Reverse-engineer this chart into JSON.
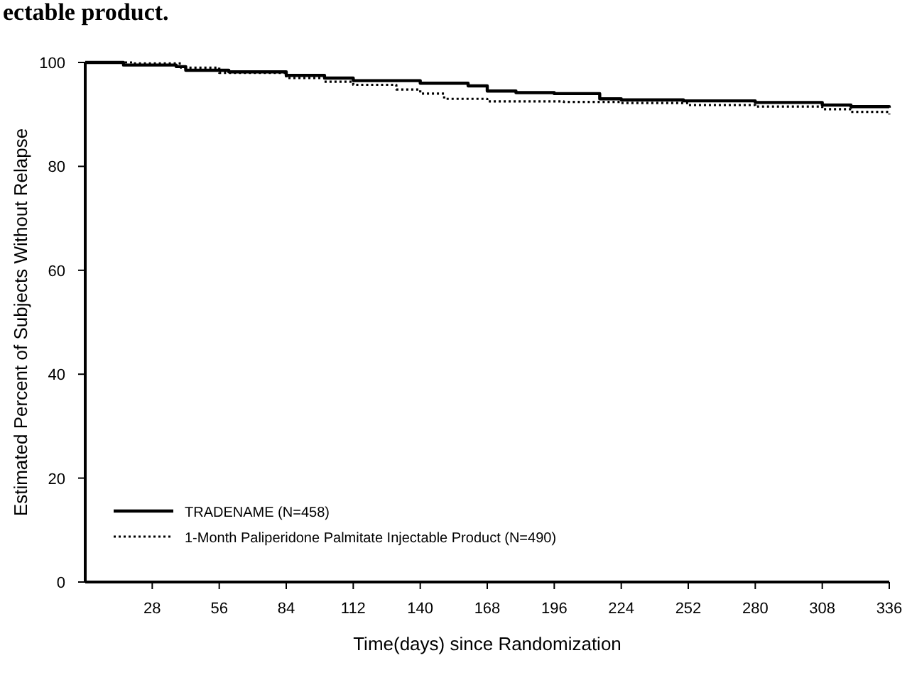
{
  "chart_data": {
    "type": "step",
    "title": "ectable product.",
    "xlabel": "Time(days) since Randomization",
    "ylabel": "Estimated Percent of Subjects Without Relapse",
    "xlim": [
      0,
      336
    ],
    "xticks": [
      28,
      56,
      84,
      112,
      140,
      168,
      196,
      224,
      252,
      280,
      308,
      336
    ],
    "ylim": [
      0,
      100
    ],
    "yticks": [
      0,
      20,
      40,
      60,
      80,
      100
    ],
    "legend": "bottom left",
    "grid": false,
    "series": [
      {
        "name": "TRADENAME (N=458)",
        "color": "#000000",
        "line_style": "solid",
        "x": [
          0,
          14,
          16,
          38,
          42,
          60,
          84,
          100,
          112,
          140,
          160,
          168,
          180,
          196,
          215,
          224,
          250,
          280,
          308,
          320,
          336
        ],
        "values": [
          100,
          100,
          99.5,
          99.2,
          98.5,
          98.2,
          97.5,
          97,
          96.5,
          96,
          95.5,
          94.5,
          94.2,
          94,
          93,
          92.8,
          92.6,
          92.3,
          91.8,
          91.5,
          91.3
        ]
      },
      {
        "name": "1-Month Paliperidone Palmitate Injectable Product (N=490)",
        "color": "#000000",
        "line_style": "dotted",
        "x": [
          0,
          20,
          40,
          56,
          84,
          100,
          112,
          130,
          140,
          150,
          168,
          200,
          224,
          252,
          280,
          308,
          320,
          336
        ],
        "values": [
          100,
          99.8,
          99,
          98,
          97,
          96.3,
          95.7,
          94.8,
          94,
          93,
          92.5,
          92.4,
          92.2,
          91.8,
          91.5,
          91,
          90.5,
          90
        ]
      }
    ]
  }
}
